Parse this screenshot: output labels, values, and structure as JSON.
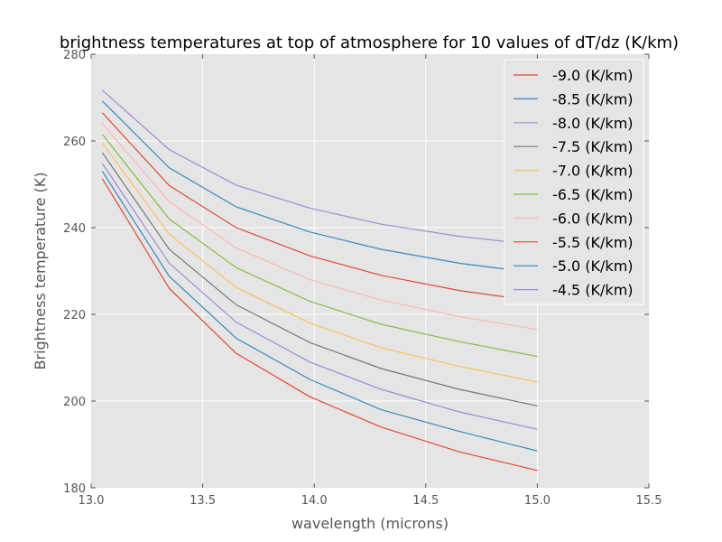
{
  "chart_data": {
    "type": "line",
    "title": "brightness temperatures at top of atmosphere for 10 values of dT/dz (K/km)",
    "xlabel": "wavelength (microns)",
    "ylabel": "Brightness temperature (K)",
    "xlim": [
      13.0,
      15.5
    ],
    "ylim": [
      180,
      280
    ],
    "x_ticks": [
      "13.0",
      "13.5",
      "14.0",
      "14.5",
      "15.0",
      "15.5"
    ],
    "y_ticks": [
      "180",
      "200",
      "220",
      "240",
      "260",
      "280"
    ],
    "grid": true,
    "legend_position": "top-right",
    "x": [
      13.05,
      13.35,
      13.65,
      13.98,
      14.3,
      14.65,
      15.0
    ],
    "series": [
      {
        "name": "-9.0 (K/km)",
        "color": "#e24a33",
        "values": [
          251.3,
          226.0,
          211.0,
          201.0,
          194.0,
          188.3,
          184.0
        ]
      },
      {
        "name": "-8.5 (K/km)",
        "color": "#348abd",
        "values": [
          253.0,
          228.8,
          214.5,
          205.0,
          198.0,
          193.0,
          188.5
        ]
      },
      {
        "name": "-8.0 (K/km)",
        "color": "#988ed5",
        "values": [
          254.8,
          231.8,
          218.2,
          209.0,
          202.7,
          197.5,
          193.5
        ]
      },
      {
        "name": "-7.5 (K/km)",
        "color": "#777777",
        "values": [
          257.3,
          235.0,
          222.2,
          213.5,
          207.5,
          202.7,
          198.9
        ]
      },
      {
        "name": "-7.0 (K/km)",
        "color": "#fbc15e",
        "values": [
          259.5,
          238.5,
          226.2,
          218.0,
          212.3,
          208.0,
          204.4
        ]
      },
      {
        "name": "-6.5 (K/km)",
        "color": "#8eba42",
        "values": [
          261.5,
          242.0,
          230.8,
          223.0,
          217.7,
          213.7,
          210.3
        ]
      },
      {
        "name": "-6.0 (K/km)",
        "color": "#ffb5b8",
        "values": [
          264.0,
          246.0,
          235.3,
          228.0,
          223.3,
          219.5,
          216.5
        ]
      },
      {
        "name": "-5.5 (K/km)",
        "color": "#e24a33",
        "values": [
          266.5,
          249.7,
          240.0,
          233.5,
          229.0,
          225.5,
          223.0
        ]
      },
      {
        "name": "-5.0 (K/km)",
        "color": "#348abd",
        "values": [
          269.2,
          253.8,
          244.8,
          239.0,
          235.0,
          231.8,
          229.5
        ]
      },
      {
        "name": "-4.5 (K/km)",
        "color": "#988ed5",
        "values": [
          271.7,
          258.0,
          249.8,
          244.5,
          240.8,
          238.0,
          236.0
        ]
      }
    ]
  }
}
